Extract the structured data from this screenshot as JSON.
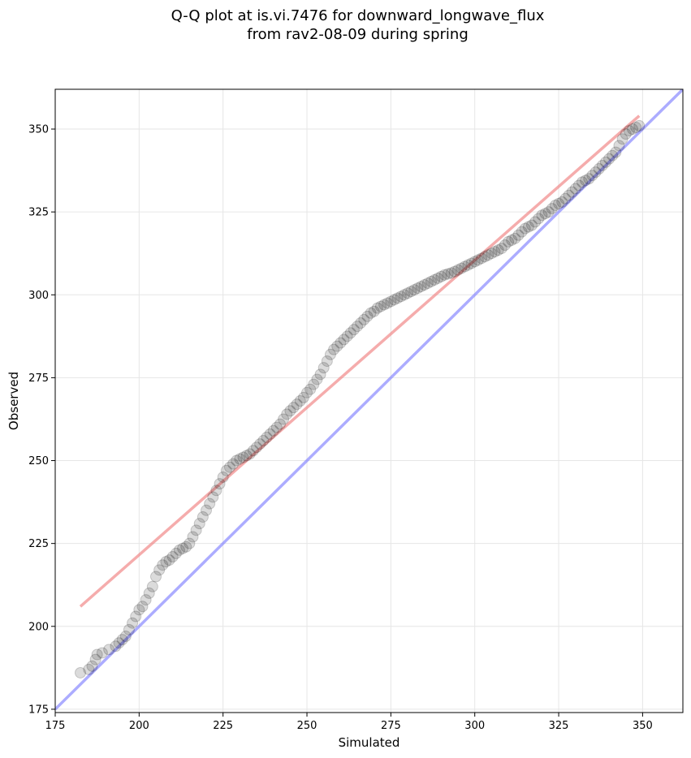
{
  "chart_data": {
    "type": "scatter",
    "title": "Q-Q plot at is.vi.7476 for downward_longwave_flux",
    "subtitle": "from rav2-08-09 during spring",
    "xlabel": "Simulated",
    "ylabel": "Observed",
    "xlim": [
      175,
      362
    ],
    "ylim": [
      174,
      362
    ],
    "xticks": [
      175,
      200,
      225,
      250,
      275,
      300,
      325,
      350
    ],
    "yticks": [
      175,
      200,
      225,
      250,
      275,
      300,
      325,
      350
    ],
    "grid": true,
    "colors": {
      "points": "#000000",
      "fit_line": "#f08080",
      "one_to_one_line": "#8080ff"
    },
    "series": [
      {
        "kind": "points",
        "x": [
          182.5,
          185,
          186,
          187,
          187.5,
          189,
          191,
          193,
          194,
          195,
          196,
          197,
          198,
          199,
          200,
          201,
          202,
          203,
          204,
          205,
          206,
          207,
          208,
          209,
          210,
          211,
          212,
          213,
          214,
          215,
          216,
          217,
          218,
          219,
          220,
          221,
          222,
          223,
          224,
          225,
          226,
          227,
          228,
          229,
          230,
          231,
          232,
          233,
          234,
          235,
          236,
          237,
          238,
          239,
          240,
          241,
          242,
          243,
          244,
          245,
          246,
          247,
          248,
          249,
          250,
          251,
          252,
          253,
          254,
          255,
          256,
          257,
          258,
          259,
          260,
          261,
          262,
          263,
          264,
          265,
          266,
          267,
          268,
          269,
          270,
          271,
          272,
          273,
          274,
          275,
          276,
          277,
          278,
          279,
          280,
          281,
          282,
          283,
          284,
          285,
          286,
          287,
          288,
          289,
          290,
          291,
          292,
          293,
          294,
          295,
          296,
          297,
          298,
          299,
          300,
          301,
          302,
          303,
          304,
          305,
          306,
          307,
          308,
          309,
          310,
          311,
          312,
          313,
          314,
          315,
          316,
          317,
          318,
          319,
          320,
          321,
          322,
          323,
          324,
          325,
          326,
          327,
          328,
          329,
          330,
          331,
          332,
          333,
          334,
          335,
          336,
          337,
          338,
          339,
          340,
          341,
          342,
          343,
          344,
          345,
          346,
          347,
          348,
          349
        ],
        "y": [
          186,
          187,
          188,
          190,
          191.5,
          192,
          193,
          194,
          195,
          196,
          197,
          199,
          201,
          203,
          205,
          206,
          208,
          210,
          212,
          215,
          217,
          218.5,
          219.5,
          220,
          221,
          222,
          223,
          223.5,
          224,
          225,
          227,
          229,
          231,
          233,
          235,
          237,
          239,
          241,
          243,
          245,
          247,
          248,
          249,
          250,
          250.5,
          251,
          251.5,
          252,
          253,
          254,
          255,
          256,
          257,
          258,
          259,
          260,
          261,
          262.5,
          264,
          265,
          266,
          267,
          268,
          269,
          270.5,
          271.5,
          273,
          274.5,
          276,
          278,
          280,
          282,
          283.5,
          284.5,
          285.5,
          286.5,
          287.5,
          288.5,
          289.5,
          290.5,
          291.5,
          292.5,
          293.5,
          294.5,
          295,
          296,
          296.5,
          297,
          297.5,
          298,
          298.5,
          299,
          299.5,
          300,
          300.5,
          301,
          301.5,
          302,
          302.5,
          303,
          303.5,
          304,
          304.5,
          305,
          305.5,
          306,
          306.3,
          306.6,
          307,
          307.5,
          308,
          308.5,
          309,
          309.5,
          310,
          310.5,
          311,
          311.5,
          312,
          312.5,
          313,
          313.5,
          314,
          315,
          316,
          316.5,
          317,
          318,
          319,
          320,
          320.5,
          321,
          322,
          323,
          324,
          324.5,
          325,
          326,
          327,
          327.5,
          328,
          329,
          330,
          331,
          332,
          333,
          334,
          334.5,
          335,
          336,
          337,
          338,
          339,
          340,
          341,
          342,
          343,
          345,
          347,
          348.5,
          349.5,
          350,
          350.5,
          351
        ]
      },
      {
        "kind": "fit-line",
        "x": [
          182.5,
          349
        ],
        "y": [
          206,
          354
        ]
      },
      {
        "kind": "one-to-one-line",
        "x": [
          175,
          362
        ],
        "y": [
          175,
          362
        ]
      }
    ]
  }
}
